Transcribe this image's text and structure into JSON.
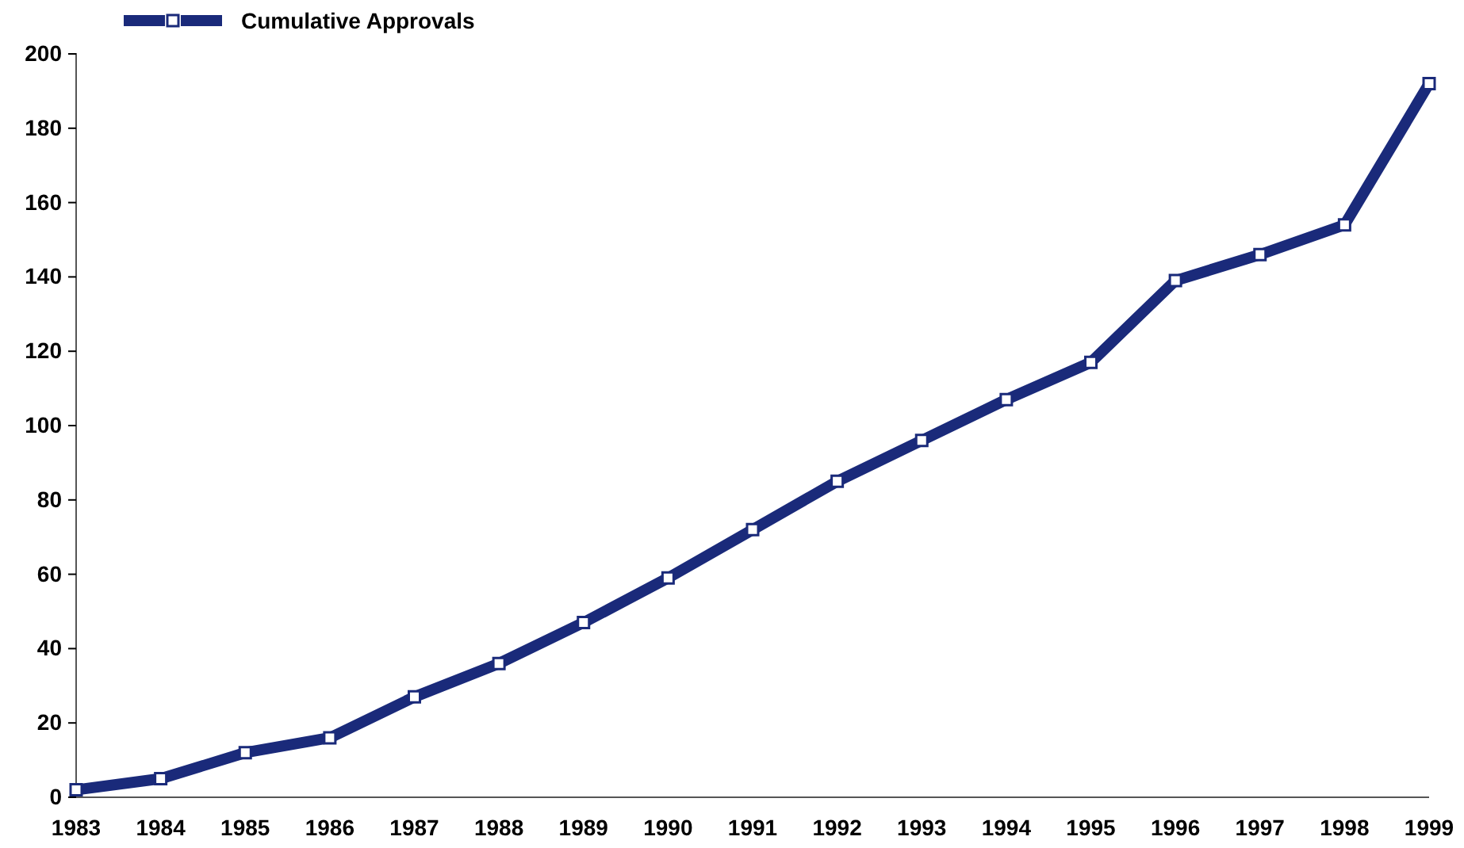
{
  "chart_data": {
    "type": "line",
    "categories": [
      "1983",
      "1984",
      "1985",
      "1986",
      "1987",
      "1988",
      "1989",
      "1990",
      "1991",
      "1992",
      "1993",
      "1994",
      "1995",
      "1996",
      "1997",
      "1998",
      "1999"
    ],
    "series": [
      {
        "name": "Cumulative Approvals",
        "color": "#1a2a7a",
        "values": [
          2,
          5,
          12,
          16,
          27,
          36,
          47,
          59,
          72,
          85,
          96,
          107,
          117,
          139,
          146,
          154,
          192
        ]
      }
    ],
    "ylim": [
      0,
      200
    ],
    "yticks": [
      0,
      20,
      40,
      60,
      80,
      100,
      120,
      140,
      160,
      180,
      200
    ],
    "marker": "square",
    "legend": "top left",
    "grid": false
  }
}
